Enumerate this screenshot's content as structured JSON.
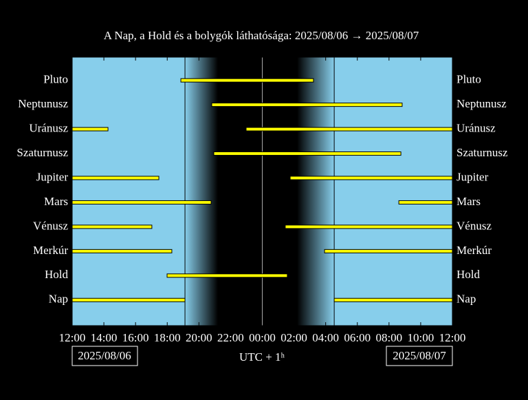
{
  "chart_data": {
    "type": "range",
    "title": "A Nap, a Hold és a bolygók láthatósága: 2025/08/06 → 2025/08/07",
    "xlabel": "UTC + 1ʰ",
    "start_date": "2025/08/06",
    "end_date": "2025/08/07",
    "xlim": [
      12,
      36
    ],
    "xticks": [
      {
        "value": 12,
        "label": "12:00"
      },
      {
        "value": 14,
        "label": "14:00"
      },
      {
        "value": 16,
        "label": "16:00"
      },
      {
        "value": 18,
        "label": "18:00"
      },
      {
        "value": 20,
        "label": "20:00"
      },
      {
        "value": 22,
        "label": "22:00"
      },
      {
        "value": 24,
        "label": "00:00"
      },
      {
        "value": 26,
        "label": "02:00"
      },
      {
        "value": 28,
        "label": "04:00"
      },
      {
        "value": 30,
        "label": "06:00"
      },
      {
        "value": 32,
        "label": "08:00"
      },
      {
        "value": 34,
        "label": "10:00"
      },
      {
        "value": 36,
        "label": "12:00"
      }
    ],
    "night": {
      "sunset": 19.12,
      "dark_start": 21.2,
      "dark_end": 26.2,
      "sunrise": 28.54
    },
    "color": "#ffff00",
    "series": [
      {
        "name": "Pluto",
        "segments": [
          [
            18.86,
            27.23
          ]
        ]
      },
      {
        "name": "Neptunusz",
        "segments": [
          [
            20.81,
            32.83
          ]
        ]
      },
      {
        "name": "Uránusz",
        "segments": [
          [
            12,
            14.26
          ],
          [
            22.98,
            36
          ]
        ]
      },
      {
        "name": "Szaturnusz",
        "segments": [
          [
            20.94,
            32.75
          ]
        ]
      },
      {
        "name": "Jupiter",
        "segments": [
          [
            12,
            17.47
          ],
          [
            25.76,
            36
          ]
        ]
      },
      {
        "name": "Mars",
        "segments": [
          [
            12,
            20.77
          ],
          [
            32.62,
            36
          ]
        ]
      },
      {
        "name": "Vénusz",
        "segments": [
          [
            12,
            17.03
          ],
          [
            25.45,
            36
          ]
        ]
      },
      {
        "name": "Merkúr",
        "segments": [
          [
            12,
            18.29
          ],
          [
            27.93,
            36
          ]
        ]
      },
      {
        "name": "Hold",
        "segments": [
          [
            17.99,
            25.58
          ]
        ]
      },
      {
        "name": "Nap",
        "segments": [
          [
            12,
            19.12
          ],
          [
            28.54,
            36
          ]
        ]
      }
    ]
  }
}
